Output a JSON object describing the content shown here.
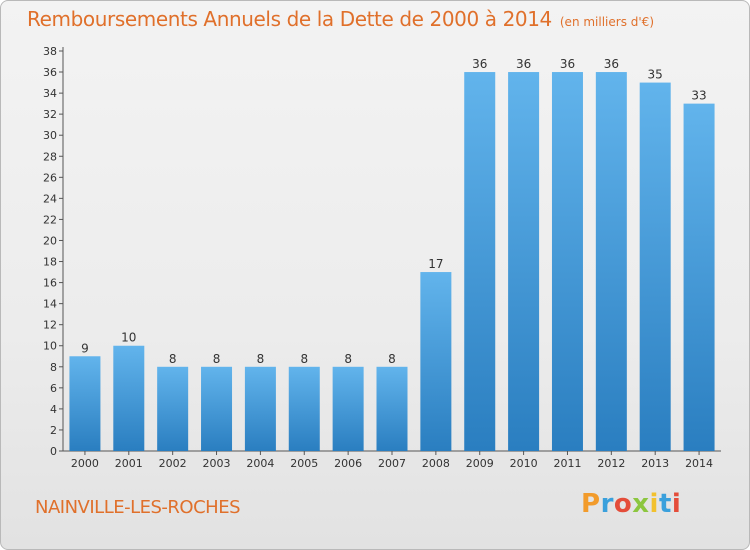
{
  "header": {
    "title": "Remboursements Annuels de la Dette de 2000 à 2014",
    "subtitle": "(en milliers d'€)"
  },
  "footer": {
    "commune": "NAINVILLE-LES-ROCHES",
    "logo_text": "Proxiti"
  },
  "colors": {
    "accent": "#e0702b",
    "bar_light": "#62b4ec",
    "bar_dark": "#2a7ec0"
  },
  "logo_letters": [
    {
      "ch": "P",
      "color": "#f29b2b"
    },
    {
      "ch": "r",
      "color": "#3aa0dc"
    },
    {
      "ch": "o",
      "color": "#e44d3a"
    },
    {
      "ch": "x",
      "color": "#8cc63f"
    },
    {
      "ch": "i",
      "color": "#f2c12e"
    },
    {
      "ch": "t",
      "color": "#3aa0dc"
    },
    {
      "ch": "i",
      "color": "#e44d3a"
    }
  ],
  "chart_data": {
    "type": "bar",
    "categories": [
      "2000",
      "2001",
      "2002",
      "2003",
      "2004",
      "2005",
      "2006",
      "2007",
      "2008",
      "2009",
      "2010",
      "2011",
      "2012",
      "2013",
      "2014"
    ],
    "values": [
      9,
      10,
      8,
      8,
      8,
      8,
      8,
      8,
      17,
      36,
      36,
      36,
      36,
      35,
      33
    ],
    "ylim": [
      0,
      38
    ],
    "yticks": [
      0,
      2,
      4,
      6,
      8,
      10,
      12,
      14,
      16,
      18,
      20,
      22,
      24,
      26,
      28,
      30,
      32,
      34,
      36,
      38
    ],
    "grid": false,
    "data_labels": true
  }
}
